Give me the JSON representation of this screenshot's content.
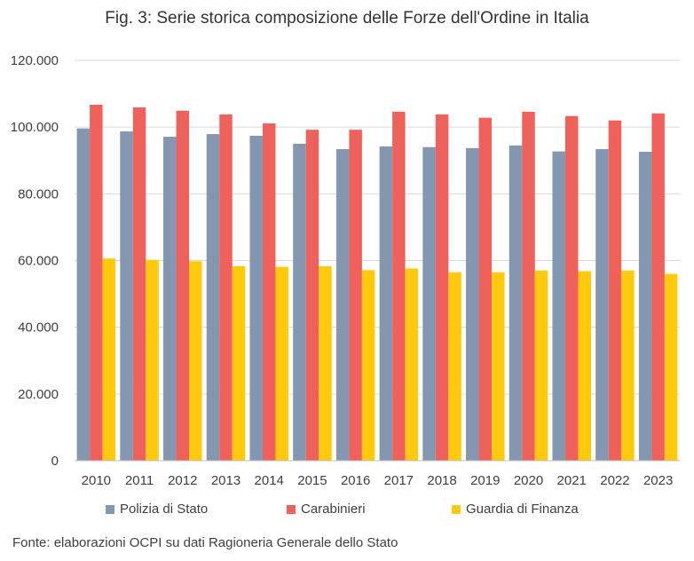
{
  "title": "Fig. 3: Serie storica composizione delle Forze dell'Ordine in Italia",
  "source": "Fonte: elaborazioni OCPI su dati Ragioneria Generale dello Stato",
  "chart_data": {
    "type": "bar",
    "categories": [
      "2010",
      "2011",
      "2012",
      "2013",
      "2014",
      "2015",
      "2016",
      "2017",
      "2018",
      "2019",
      "2020",
      "2021",
      "2022",
      "2023"
    ],
    "series": [
      {
        "name": "Polizia di Stato",
        "color": "#8497B0",
        "values": [
          99600,
          98700,
          97100,
          97900,
          97400,
          95000,
          93400,
          94200,
          94000,
          93700,
          94500,
          92700,
          93400,
          92600
        ]
      },
      {
        "name": "Carabinieri",
        "color": "#EE625B",
        "values": [
          106700,
          105900,
          104900,
          103800,
          101100,
          99200,
          99200,
          104600,
          103800,
          102800,
          104600,
          103300,
          102000,
          104100
        ]
      },
      {
        "name": "Guardia di Finanza",
        "color": "#FFC90E",
        "values": [
          60600,
          60200,
          59800,
          58300,
          58100,
          58300,
          57100,
          57600,
          56500,
          56500,
          57000,
          56800,
          57000,
          56000
        ]
      }
    ],
    "ylim": [
      0,
      120000
    ],
    "yticks": [
      0,
      20000,
      40000,
      60000,
      80000,
      100000,
      120000
    ],
    "ytick_labels": [
      "0",
      "20.000",
      "40.000",
      "60.000",
      "80.000",
      "100.000",
      "120.000"
    ],
    "grid": true,
    "legend_position": "bottom"
  }
}
